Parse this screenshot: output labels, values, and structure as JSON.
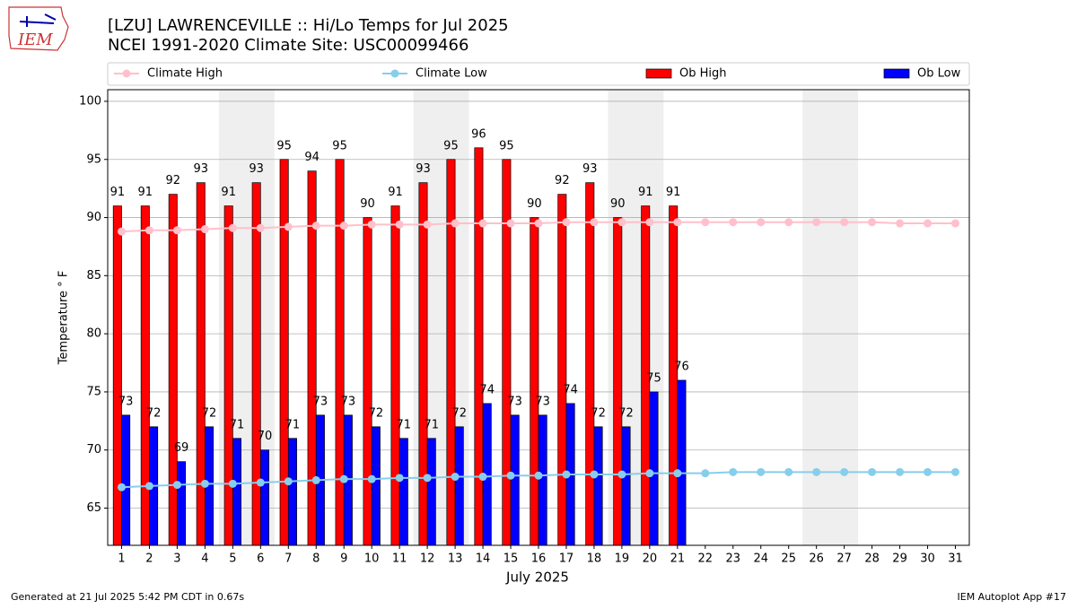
{
  "logo": "IEM",
  "chart_data": {
    "type": "bar_line",
    "title": "[LZU] LAWRENCEVILLE :: Hi/Lo Temps for Jul 2025",
    "subtitle": "NCEI 1991-2020 Climate Site: USC00099466",
    "ylabel": "Temperature ° F",
    "xlabel": "July 2025",
    "x": [
      1,
      2,
      3,
      4,
      5,
      6,
      7,
      8,
      9,
      10,
      11,
      12,
      13,
      14,
      15,
      16,
      17,
      18,
      19,
      20,
      21,
      22,
      23,
      24,
      25,
      26,
      27,
      28,
      29,
      30,
      31
    ],
    "xlim": [
      0.5,
      31.5
    ],
    "xticks": [
      1,
      2,
      3,
      4,
      5,
      6,
      7,
      8,
      9,
      10,
      11,
      12,
      13,
      14,
      15,
      16,
      17,
      18,
      19,
      20,
      21,
      22,
      23,
      24,
      25,
      26,
      27,
      28,
      29,
      30,
      31
    ],
    "ylim": [
      61.8,
      101
    ],
    "yticks": [
      65,
      70,
      75,
      80,
      85,
      90,
      95,
      100
    ],
    "grid": true,
    "shaded_ranges": [
      [
        4.5,
        6.5
      ],
      [
        11.5,
        13.5
      ],
      [
        18.5,
        20.5
      ],
      [
        25.5,
        27.5
      ]
    ],
    "series": [
      {
        "name": "Climate High",
        "kind": "line",
        "color": "#ffc0cb",
        "values": [
          88.8,
          88.9,
          88.9,
          89.0,
          89.1,
          89.1,
          89.2,
          89.3,
          89.3,
          89.4,
          89.4,
          89.4,
          89.5,
          89.5,
          89.5,
          89.5,
          89.6,
          89.6,
          89.6,
          89.6,
          89.6,
          89.6,
          89.6,
          89.6,
          89.6,
          89.6,
          89.6,
          89.6,
          89.5,
          89.5,
          89.5
        ]
      },
      {
        "name": "Climate Low",
        "kind": "line",
        "color": "#87ceeb",
        "values": [
          66.8,
          66.9,
          67.0,
          67.1,
          67.1,
          67.2,
          67.3,
          67.4,
          67.5,
          67.5,
          67.6,
          67.6,
          67.7,
          67.7,
          67.8,
          67.8,
          67.9,
          67.9,
          67.9,
          68.0,
          68.0,
          68.0,
          68.1,
          68.1,
          68.1,
          68.1,
          68.1,
          68.1,
          68.1,
          68.1,
          68.1
        ]
      },
      {
        "name": "Ob High",
        "kind": "bar",
        "color": "#ff0000",
        "values": [
          91,
          91,
          92,
          93,
          91,
          93,
          95,
          94,
          95,
          90,
          91,
          93,
          95,
          96,
          95,
          90,
          92,
          93,
          90,
          91,
          91,
          null,
          null,
          null,
          null,
          null,
          null,
          null,
          null,
          null,
          null
        ]
      },
      {
        "name": "Ob Low",
        "kind": "bar",
        "color": "#0000ff",
        "values": [
          73,
          72,
          69,
          72,
          71,
          70,
          71,
          73,
          73,
          72,
          71,
          71,
          72,
          74,
          73,
          73,
          74,
          72,
          72,
          75,
          76,
          null,
          null,
          null,
          null,
          null,
          null,
          null,
          null,
          null,
          null
        ]
      }
    ],
    "footer_left": "Generated at 21 Jul 2025 5:42 PM CDT in 0.67s",
    "footer_right": "IEM Autoplot App #17"
  }
}
